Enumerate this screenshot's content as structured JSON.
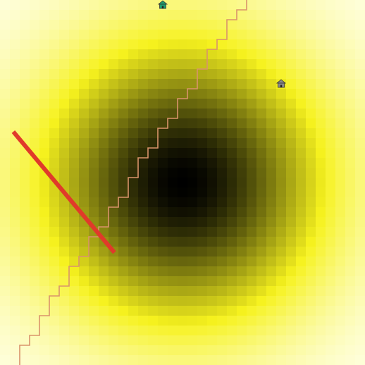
{
  "map": {
    "grid_size": 37,
    "field": {
      "peak_cell": [
        18,
        18
      ],
      "falloff": 9,
      "color_low": "#ffffee",
      "color_mid": "#f6f21e",
      "color_high": "#000000"
    }
  },
  "markers": [
    {
      "name": "house-marker-top",
      "icon": "house-icon",
      "color": "#1f9e6e",
      "cell": [
        16,
        0
      ]
    },
    {
      "name": "house-marker-right",
      "icon": "house-icon",
      "color": "#8a8a8a",
      "cell": [
        28,
        8
      ]
    }
  ],
  "path": {
    "name": "stair-step-path",
    "color": "#d9936b",
    "cells": [
      [
        2,
        37
      ],
      [
        2,
        35
      ],
      [
        3,
        35
      ],
      [
        3,
        34
      ],
      [
        4,
        34
      ],
      [
        4,
        32
      ],
      [
        5,
        32
      ],
      [
        5,
        30
      ],
      [
        6,
        30
      ],
      [
        6,
        29
      ],
      [
        7,
        29
      ],
      [
        7,
        27
      ],
      [
        8,
        27
      ],
      [
        8,
        26
      ],
      [
        9,
        26
      ],
      [
        9,
        24
      ],
      [
        10,
        24
      ],
      [
        10,
        23
      ],
      [
        11,
        23
      ],
      [
        11,
        21
      ],
      [
        12,
        21
      ],
      [
        12,
        20
      ],
      [
        13,
        20
      ],
      [
        13,
        18
      ],
      [
        14,
        18
      ],
      [
        14,
        16
      ],
      [
        15,
        16
      ],
      [
        15,
        15
      ],
      [
        16,
        15
      ],
      [
        16,
        13
      ],
      [
        17,
        13
      ],
      [
        17,
        12
      ],
      [
        18,
        12
      ],
      [
        18,
        10
      ],
      [
        19,
        10
      ],
      [
        19,
        9
      ],
      [
        20,
        9
      ],
      [
        20,
        7
      ],
      [
        21,
        7
      ],
      [
        21,
        5
      ],
      [
        22,
        5
      ],
      [
        22,
        4
      ],
      [
        23,
        4
      ],
      [
        23,
        2
      ],
      [
        24,
        2
      ],
      [
        24,
        1
      ],
      [
        25,
        1
      ],
      [
        25,
        0
      ]
    ]
  },
  "segment": {
    "name": "red-line-segment",
    "color": "#e03a2a",
    "from": [
      1.35,
      13.35
    ],
    "to": [
      11.6,
      25.6
    ]
  }
}
